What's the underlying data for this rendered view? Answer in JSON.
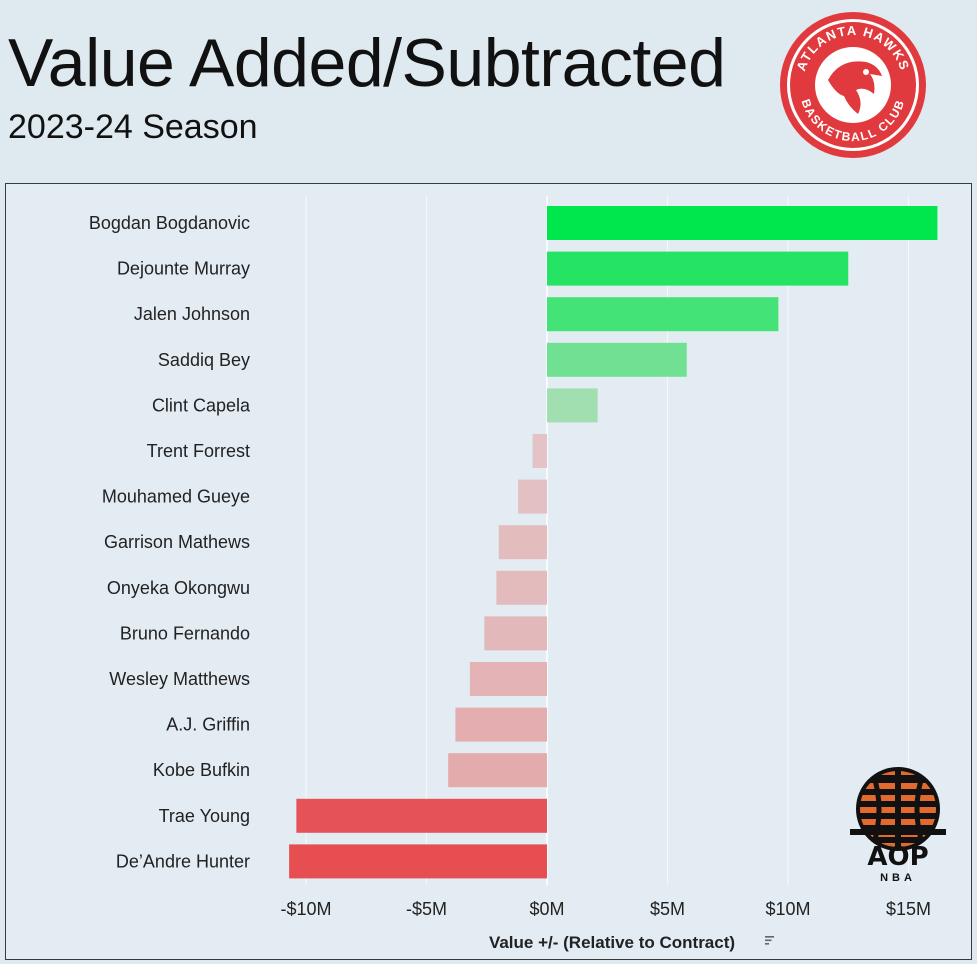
{
  "header": {
    "title": "Value Added/Subtracted",
    "subtitle": "2023-24 Season"
  },
  "logos": {
    "team_logo_icon": "atlanta-hawks-logo-icon",
    "team_logo_text_top": "ATLANTA HAWKS",
    "team_logo_text_bottom": "BASKETBALL CLUB",
    "brand_logo_icon": "aop-nba-logo-icon",
    "brand_logo_text": "AOP",
    "brand_logo_subtext": "NBA"
  },
  "colors": {
    "background": "#dfe9f0",
    "positive_max": "#00e64d",
    "positive_min": "#c8ddc8",
    "negative_min": "#e3c4c6",
    "negative_max": "#e64e52",
    "hawks_red": "#e03a3e"
  },
  "chart_data": {
    "type": "bar",
    "orientation": "horizontal",
    "categories": [
      "Bogdan Bogdanovic",
      "Dejounte Murray",
      "Jalen Johnson",
      "Saddiq Bey",
      "Clint Capela",
      "Trent Forrest",
      "Mouhamed Gueye",
      "Garrison Mathews",
      "Onyeka Okongwu",
      "Bruno Fernando",
      "Wesley Matthews",
      "A.J. Griffin",
      "Kobe Bufkin",
      "Trae Young",
      "De’Andre Hunter"
    ],
    "values": [
      16.2,
      12.5,
      9.6,
      5.8,
      2.1,
      -0.6,
      -1.2,
      -2.0,
      -2.1,
      -2.6,
      -3.2,
      -3.8,
      -4.1,
      -10.4,
      -10.7
    ],
    "unit": "$M",
    "xlabel": "Value +/- (Relative to Contract)",
    "ticks": [
      -10,
      -5,
      0,
      5,
      10,
      15
    ],
    "tick_labels": [
      "-$10M",
      "-$5M",
      "$0M",
      "$5M",
      "$10M",
      "$15M"
    ],
    "xlim": [
      -12,
      16.5
    ],
    "grid": true
  }
}
